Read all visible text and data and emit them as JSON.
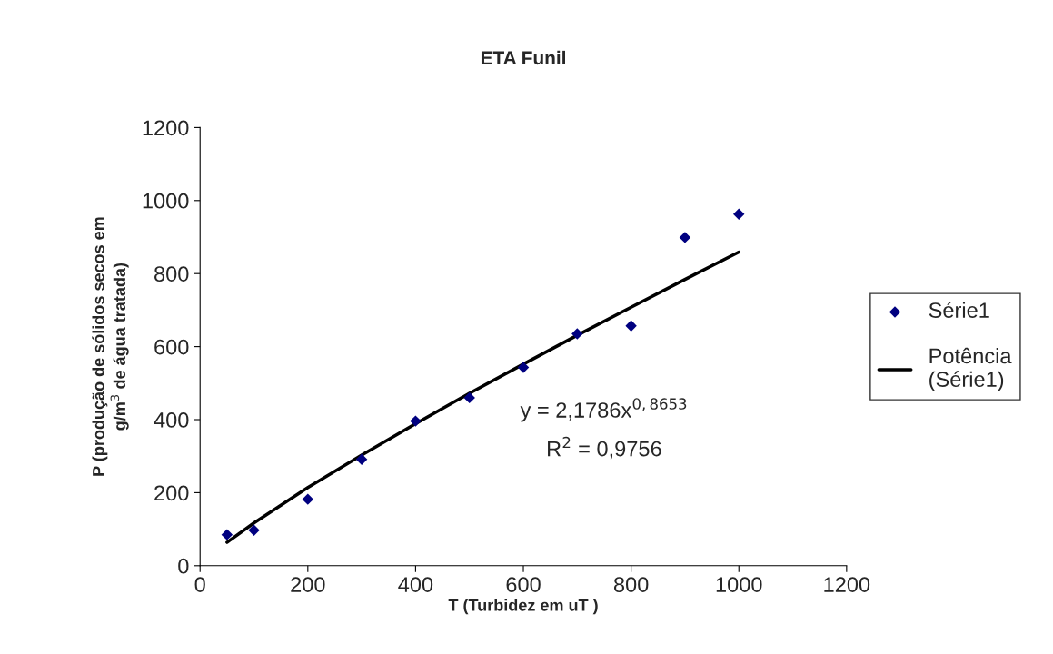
{
  "chart_data": {
    "type": "scatter",
    "title": "ETA Funil",
    "xlabel": "T (Turbidez em uT )",
    "ylabel": "P (produção de sólidos secos em\ng/m$^{3}$ de água tratada)",
    "series": [
      {
        "name": "Série1",
        "color": "#000080",
        "marker": "diamond",
        "x": [
          50,
          100,
          200,
          300,
          400,
          500,
          600,
          700,
          800,
          900,
          1000
        ],
        "values": [
          85,
          97,
          182,
          291,
          396,
          460,
          543,
          635,
          657,
          899,
          963
        ]
      },
      {
        "name": "Potência\n(Série1)",
        "type": "line",
        "color": "#000000",
        "line_style": "solid",
        "x": [
          50,
          100,
          200,
          300,
          400,
          500,
          600,
          700,
          800,
          900,
          1000
        ],
        "values": [
          64,
          117,
          214,
          303,
          389,
          472,
          552,
          631,
          708,
          784,
          859
        ]
      }
    ],
    "annotations": [
      "y = 2,1786x$^{0,8653}$",
      "R$^{2}$ = 0,9756"
    ],
    "xlim": [
      0,
      1200
    ],
    "xticks": [
      0,
      200,
      400,
      600,
      800,
      1000,
      1200
    ],
    "ylim": [
      0,
      1200
    ],
    "yticks": [
      0,
      200,
      400,
      600,
      800,
      1000,
      1200
    ],
    "grid": false,
    "legend": "right"
  }
}
